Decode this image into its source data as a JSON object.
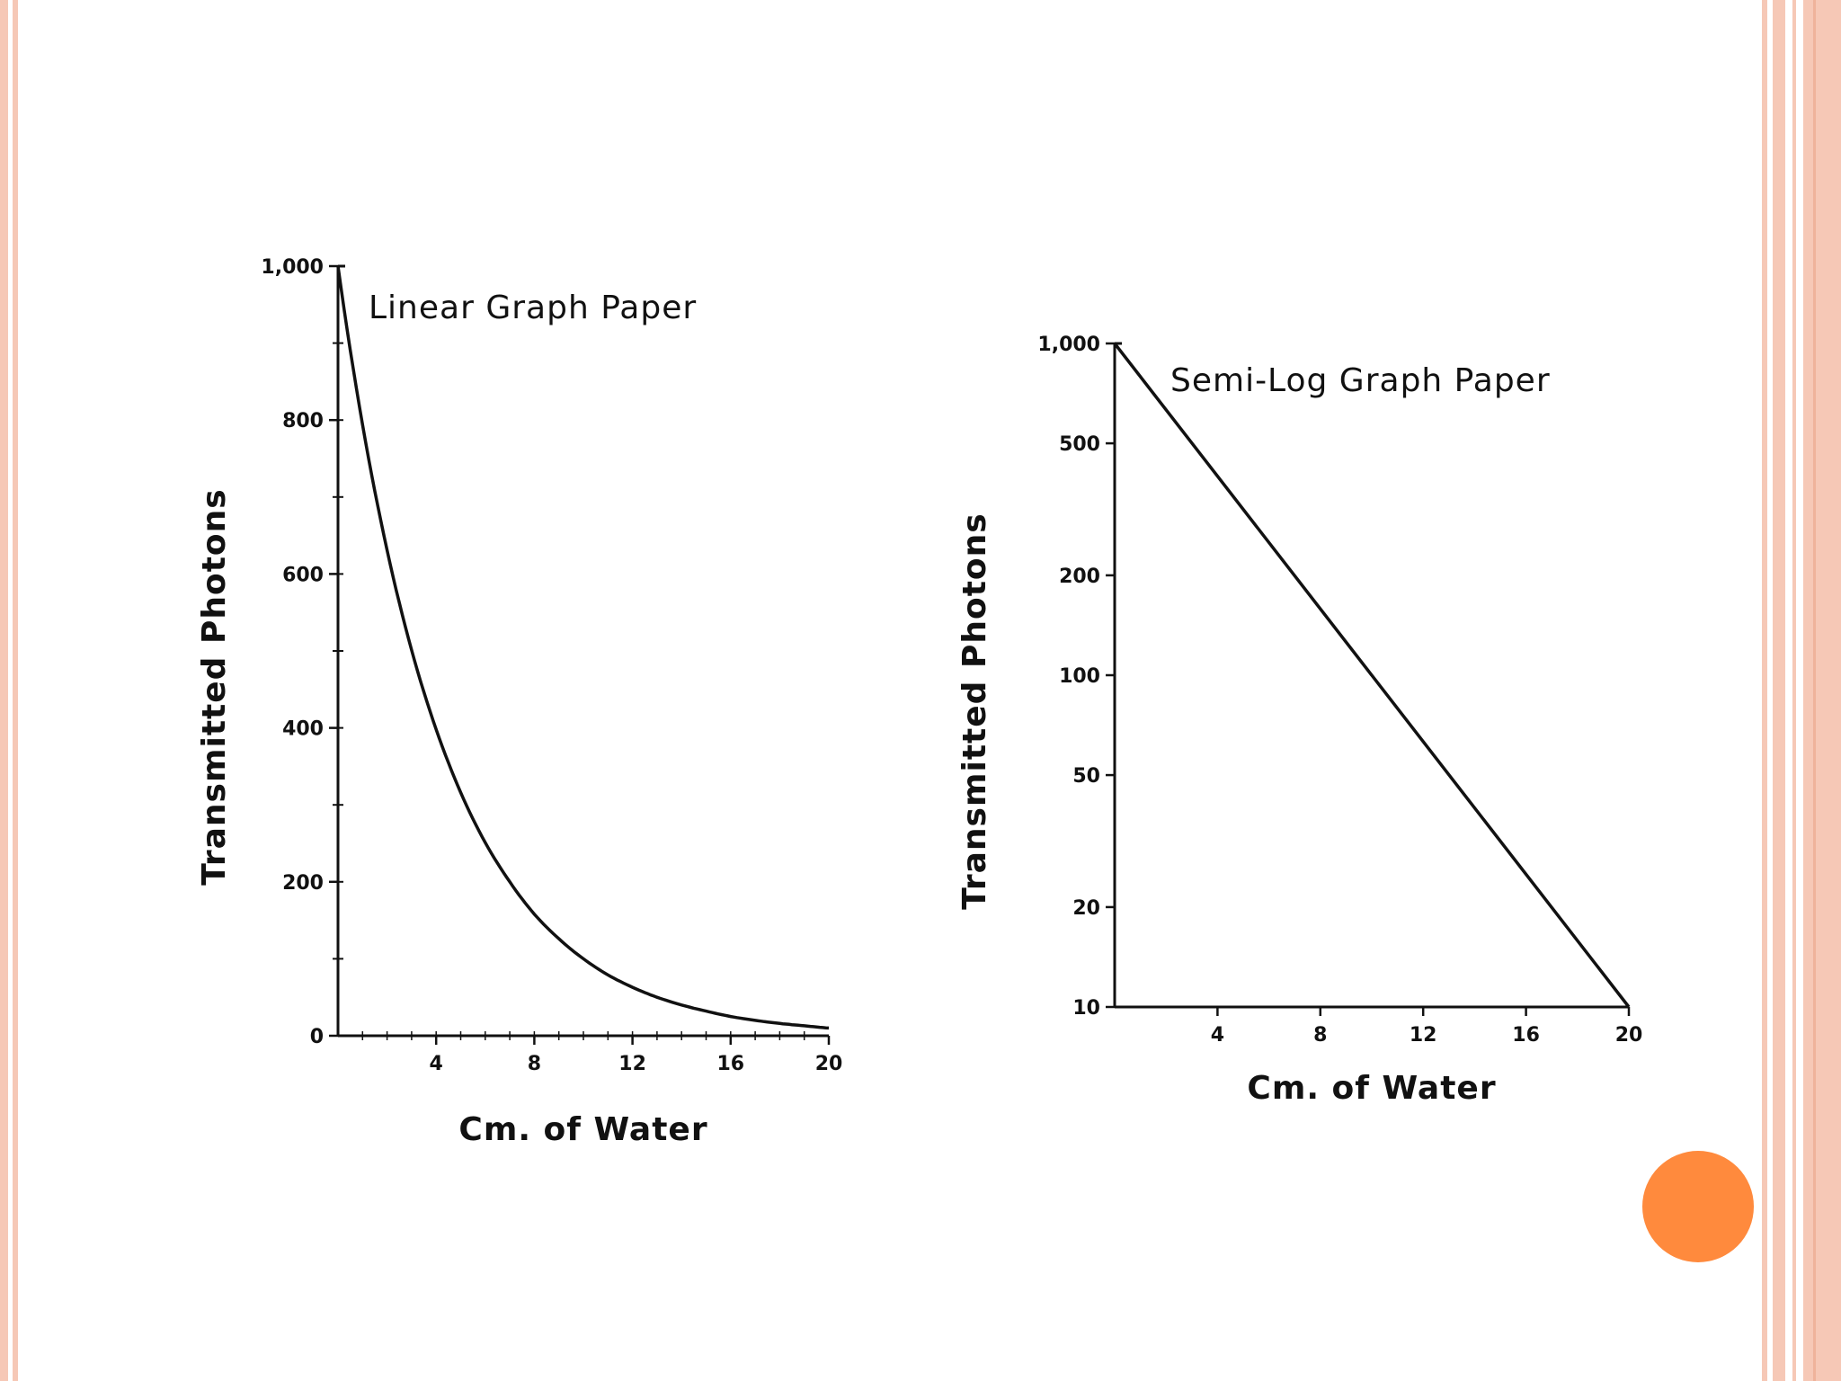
{
  "slide": {
    "frame_color": "#f6c8b6",
    "accent_color": "#ff8a3d"
  },
  "chart_data": [
    {
      "type": "line",
      "title": "Linear Graph Paper",
      "xlabel": "Cm. of Water",
      "ylabel": "Transmitted Photons",
      "xlim": [
        0,
        20
      ],
      "ylim": [
        0,
        1000
      ],
      "y_scale": "linear",
      "x_ticks": [
        {
          "value": 4,
          "label": "4"
        },
        {
          "value": 8,
          "label": "8"
        },
        {
          "value": 12,
          "label": "12"
        },
        {
          "value": 16,
          "label": "16"
        },
        {
          "value": 20,
          "label": "20"
        }
      ],
      "y_ticks": [
        {
          "value": 0,
          "label": "0"
        },
        {
          "value": 200,
          "label": "200"
        },
        {
          "value": 400,
          "label": "400"
        },
        {
          "value": 600,
          "label": "600"
        },
        {
          "value": 800,
          "label": "800"
        },
        {
          "value": 1000,
          "label": "1,000"
        }
      ],
      "series": [
        {
          "x": [
            0,
            1,
            2,
            3,
            4,
            5,
            6,
            7,
            8,
            9,
            10,
            11,
            12,
            13,
            14,
            15,
            16,
            17,
            18,
            19,
            20
          ],
          "y": [
            1000,
            794,
            631,
            501,
            398,
            316,
            251,
            200,
            158,
            126,
            100,
            79,
            63,
            50,
            40,
            32,
            25,
            20,
            16,
            13,
            10
          ]
        }
      ],
      "grid": false
    },
    {
      "type": "line",
      "title": "Semi-Log Graph Paper",
      "xlabel": "Cm. of Water",
      "ylabel": "Transmitted Photons",
      "xlim": [
        0,
        20
      ],
      "ylim": [
        10,
        1000
      ],
      "y_scale": "log",
      "x_ticks": [
        {
          "value": 4,
          "label": "4"
        },
        {
          "value": 8,
          "label": "8"
        },
        {
          "value": 12,
          "label": "12"
        },
        {
          "value": 16,
          "label": "16"
        },
        {
          "value": 20,
          "label": "20"
        }
      ],
      "y_ticks": [
        {
          "value": 10,
          "label": "10"
        },
        {
          "value": 20,
          "label": "20"
        },
        {
          "value": 50,
          "label": "50"
        },
        {
          "value": 100,
          "label": "100"
        },
        {
          "value": 200,
          "label": "200"
        },
        {
          "value": 500,
          "label": "500"
        },
        {
          "value": 1000,
          "label": "1,000"
        }
      ],
      "series": [
        {
          "x": [
            0,
            20
          ],
          "y": [
            1000,
            10
          ]
        }
      ],
      "grid": false
    }
  ]
}
